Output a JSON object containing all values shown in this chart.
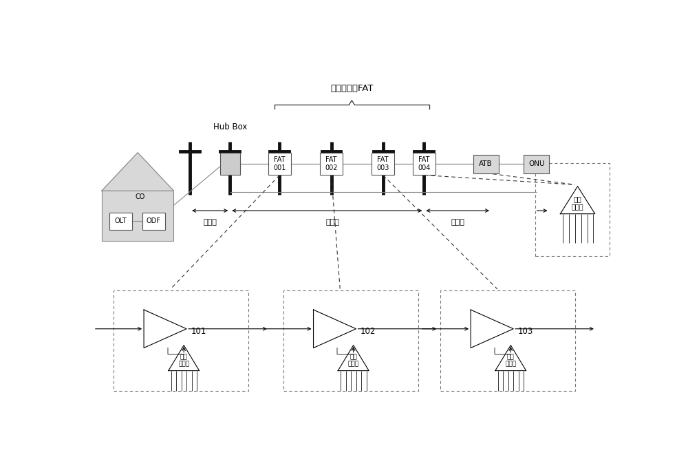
{
  "title": "四个不等比FAT",
  "bg_color": "#ffffff",
  "line_color": "#000000",
  "gray_color": "#aaaaaa",
  "box_fill": "#e0e0e0",
  "fig_width": 10.0,
  "fig_height": 6.64,
  "labels": {
    "hub_box": "Hub Box",
    "fat001": "FAT\n001",
    "fat002": "FAT\n002",
    "fat003": "FAT\n003",
    "fat004": "FAT\n004",
    "atb": "ATB",
    "onu": "ONU",
    "co": "CO",
    "olt": "OLT",
    "odf": "ODF",
    "feed_cable": "馈线缆",
    "dist_cable": "配线缆",
    "drop_cable": "入户缆",
    "splitter_label": "等比\n分光器",
    "node101": "101",
    "node102": "102",
    "node103": "103"
  }
}
